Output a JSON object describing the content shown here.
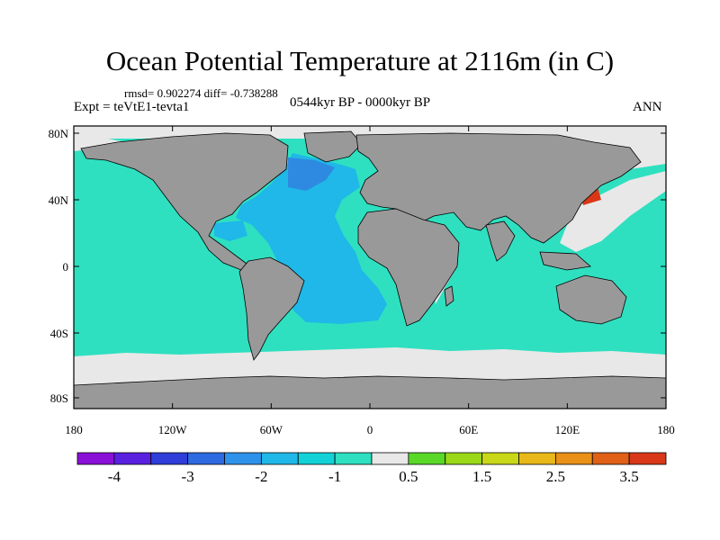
{
  "title": "Ocean Potential Temperature at 2116m (in C)",
  "stats": "rmsd= 0.902274 diff= -0.738288",
  "experiment": "Expt = teVtE1-tevta1",
  "period": "0544kyr BP - 0000kyr BP",
  "season": "ANN",
  "lat_labels": [
    "80N",
    "40N",
    "0",
    "40S",
    "80S"
  ],
  "lon_labels": [
    "180",
    "120W",
    "60W",
    "0",
    "60E",
    "120E",
    "180"
  ],
  "colorbar": {
    "colors": [
      "#8a10d8",
      "#5a20e0",
      "#2f3ed8",
      "#2e6ae0",
      "#2f92ea",
      "#1fb8e8",
      "#12d2d8",
      "#2ee0c0",
      "#e8e8e8",
      "#5ad828",
      "#9ad818",
      "#c8d818",
      "#e8b818",
      "#e89018",
      "#e06018",
      "#d83818"
    ],
    "labels": [
      "-4",
      "-3",
      "-2",
      "-1",
      "0.5",
      "1.5",
      "2.5",
      "3.5"
    ]
  },
  "colors": {
    "land": "#999999",
    "pacific_indian": "#2ee0c0",
    "atlantic": "#1fb8e8",
    "deep_blue": "#2e8ae0",
    "no_data": "#e8e8e8",
    "hot_spot": "#d83818"
  }
}
